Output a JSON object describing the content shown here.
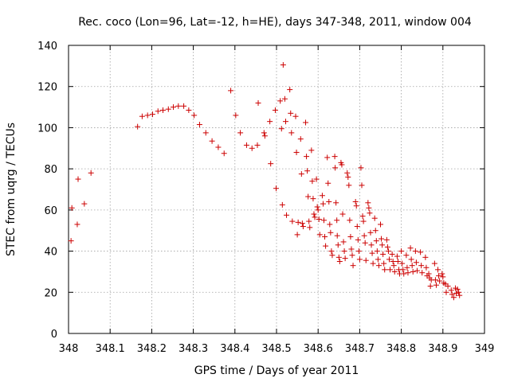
{
  "chart_data": {
    "type": "scatter",
    "title": "Rec. coco (Lon=96, Lat=-12, h=HE), days 347-348, 2011, window 004",
    "xlabel": "GPS time / Days of year 2011",
    "ylabel": "STEC from uqrg / TECUs",
    "xlim": [
      348,
      349
    ],
    "ylim": [
      0,
      140
    ],
    "x_ticks": [
      "348",
      "348.1",
      "348.2",
      "348.3",
      "348.4",
      "348.5",
      "348.6",
      "348.7",
      "348.8",
      "348.9",
      "349"
    ],
    "y_ticks": [
      "0",
      "20",
      "40",
      "60",
      "80",
      "100",
      "120",
      "140"
    ],
    "grid": true,
    "marker": "+",
    "marker_color": "#cc0000",
    "points": [
      [
        348.006,
        45
      ],
      [
        348.008,
        61
      ],
      [
        348.021,
        53
      ],
      [
        348.023,
        75
      ],
      [
        348.038,
        63
      ],
      [
        348.054,
        78
      ],
      [
        348.166,
        100.5
      ],
      [
        348.177,
        105.5
      ],
      [
        348.19,
        106
      ],
      [
        348.202,
        106.5
      ],
      [
        348.215,
        108
      ],
      [
        348.227,
        108.5
      ],
      [
        348.24,
        109
      ],
      [
        348.252,
        110
      ],
      [
        348.264,
        110.5
      ],
      [
        348.277,
        110.5
      ],
      [
        348.289,
        108.5
      ],
      [
        348.302,
        106
      ],
      [
        348.315,
        101.5
      ],
      [
        348.33,
        97.5
      ],
      [
        348.345,
        93.5
      ],
      [
        348.36,
        90.5
      ],
      [
        348.374,
        87.5
      ],
      [
        348.39,
        118
      ],
      [
        348.402,
        106
      ],
      [
        348.413,
        97.5
      ],
      [
        348.428,
        91.5
      ],
      [
        348.441,
        90
      ],
      [
        348.454,
        91.5
      ],
      [
        348.456,
        112
      ],
      [
        348.47,
        97.5
      ],
      [
        348.472,
        96
      ],
      [
        348.484,
        103
      ],
      [
        348.486,
        82.5
      ],
      [
        348.497,
        108.5
      ],
      [
        348.499,
        70.5
      ],
      [
        348.509,
        113
      ],
      [
        348.512,
        99.5
      ],
      [
        348.514,
        62.5
      ],
      [
        348.52,
        114
      ],
      [
        348.522,
        103
      ],
      [
        348.524,
        57.5
      ],
      [
        348.516,
        130.5
      ],
      [
        348.532,
        118.5
      ],
      [
        348.534,
        107
      ],
      [
        348.536,
        97.5
      ],
      [
        348.538,
        54.5
      ],
      [
        348.546,
        105.5
      ],
      [
        348.548,
        88
      ],
      [
        348.55,
        48
      ],
      [
        348.552,
        54
      ],
      [
        348.558,
        94.5
      ],
      [
        348.56,
        77.5
      ],
      [
        348.562,
        53.5
      ],
      [
        348.564,
        52
      ],
      [
        348.57,
        102.5
      ],
      [
        348.572,
        86
      ],
      [
        348.574,
        79
      ],
      [
        348.576,
        66.5
      ],
      [
        348.578,
        54.5
      ],
      [
        348.58,
        51.5
      ],
      [
        348.584,
        89
      ],
      [
        348.586,
        74
      ],
      [
        348.588,
        65.5
      ],
      [
        348.59,
        58
      ],
      [
        348.592,
        56.5
      ],
      [
        348.596,
        75
      ],
      [
        348.598,
        61.5
      ],
      [
        348.6,
        60
      ],
      [
        348.602,
        55.5
      ],
      [
        348.604,
        48
      ],
      [
        348.61,
        67
      ],
      [
        348.612,
        63
      ],
      [
        348.614,
        55
      ],
      [
        348.616,
        47
      ],
      [
        348.618,
        42.5
      ],
      [
        348.622,
        85.5
      ],
      [
        348.624,
        73
      ],
      [
        348.626,
        64
      ],
      [
        348.628,
        53
      ],
      [
        348.63,
        49
      ],
      [
        348.632,
        40
      ],
      [
        348.634,
        38
      ],
      [
        348.64,
        86
      ],
      [
        348.641,
        80.5
      ],
      [
        348.643,
        63.5
      ],
      [
        348.645,
        55
      ],
      [
        348.646,
        47.5
      ],
      [
        348.648,
        43
      ],
      [
        348.65,
        37
      ],
      [
        348.652,
        35
      ],
      [
        348.655,
        83
      ],
      [
        348.657,
        82
      ],
      [
        348.659,
        58
      ],
      [
        348.661,
        44.5
      ],
      [
        348.663,
        40
      ],
      [
        348.665,
        36.5
      ],
      [
        348.67,
        78
      ],
      [
        348.672,
        76
      ],
      [
        348.674,
        72
      ],
      [
        348.676,
        55
      ],
      [
        348.678,
        47
      ],
      [
        348.68,
        41
      ],
      [
        348.682,
        38
      ],
      [
        348.684,
        33
      ],
      [
        348.69,
        64
      ],
      [
        348.692,
        62
      ],
      [
        348.694,
        52
      ],
      [
        348.696,
        45.5
      ],
      [
        348.698,
        40
      ],
      [
        348.7,
        36
      ],
      [
        348.703,
        80.5
      ],
      [
        348.705,
        72
      ],
      [
        348.707,
        57
      ],
      [
        348.709,
        54.5
      ],
      [
        348.711,
        47.5
      ],
      [
        348.713,
        44
      ],
      [
        348.715,
        35.5
      ],
      [
        348.72,
        63.5
      ],
      [
        348.722,
        61
      ],
      [
        348.724,
        58.5
      ],
      [
        348.726,
        49
      ],
      [
        348.728,
        43
      ],
      [
        348.73,
        39
      ],
      [
        348.732,
        34
      ],
      [
        348.736,
        56
      ],
      [
        348.738,
        50
      ],
      [
        348.74,
        45
      ],
      [
        348.742,
        40
      ],
      [
        348.744,
        36
      ],
      [
        348.746,
        33
      ],
      [
        348.75,
        53
      ],
      [
        348.752,
        46
      ],
      [
        348.754,
        43
      ],
      [
        348.756,
        38.5
      ],
      [
        348.758,
        34
      ],
      [
        348.76,
        31
      ],
      [
        348.765,
        45.5
      ],
      [
        348.767,
        42
      ],
      [
        348.769,
        40
      ],
      [
        348.771,
        36
      ],
      [
        348.773,
        31
      ],
      [
        348.778,
        38.5
      ],
      [
        348.78,
        35
      ],
      [
        348.782,
        33
      ],
      [
        348.784,
        30
      ],
      [
        348.79,
        37.5
      ],
      [
        348.792,
        35
      ],
      [
        348.794,
        31
      ],
      [
        348.796,
        29
      ],
      [
        348.8,
        40
      ],
      [
        348.802,
        34
      ],
      [
        348.804,
        31
      ],
      [
        348.806,
        29
      ],
      [
        348.812,
        38
      ],
      [
        348.814,
        32
      ],
      [
        348.816,
        29.5
      ],
      [
        348.822,
        41.5
      ],
      [
        348.824,
        36
      ],
      [
        348.826,
        33
      ],
      [
        348.828,
        30
      ],
      [
        348.834,
        40
      ],
      [
        348.836,
        34.5
      ],
      [
        348.838,
        30.5
      ],
      [
        348.846,
        39.5
      ],
      [
        348.848,
        33
      ],
      [
        348.85,
        29.5
      ],
      [
        348.858,
        37
      ],
      [
        348.86,
        32
      ],
      [
        348.862,
        28
      ],
      [
        348.866,
        29
      ],
      [
        348.868,
        27
      ],
      [
        348.87,
        23
      ],
      [
        348.872,
        26
      ],
      [
        348.88,
        34
      ],
      [
        348.882,
        26
      ],
      [
        348.884,
        23.5
      ],
      [
        348.888,
        31
      ],
      [
        348.89,
        28
      ],
      [
        348.892,
        25.5
      ],
      [
        348.898,
        29
      ],
      [
        348.9,
        27.5
      ],
      [
        348.902,
        24.5
      ],
      [
        348.906,
        24
      ],
      [
        348.908,
        20
      ],
      [
        348.912,
        23
      ],
      [
        348.92,
        21
      ],
      [
        348.922,
        19
      ],
      [
        348.926,
        17.5
      ],
      [
        348.93,
        22
      ],
      [
        348.932,
        19.5
      ],
      [
        348.935,
        21.5
      ],
      [
        348.938,
        20
      ],
      [
        348.94,
        18.5
      ]
    ]
  }
}
